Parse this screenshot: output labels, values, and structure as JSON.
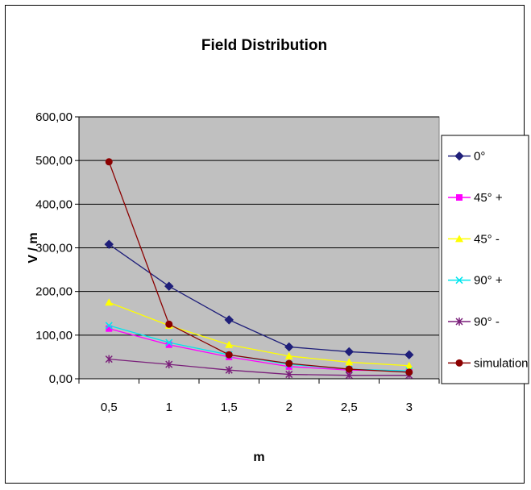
{
  "chart_data": {
    "type": "line",
    "title": "Field Distribution",
    "xlabel": "m",
    "ylabel": "V / m",
    "categories": [
      "0,5",
      "1",
      "1,5",
      "2",
      "2,5",
      "3"
    ],
    "y_ticks": [
      "0,00",
      "100,00",
      "200,00",
      "300,00",
      "400,00",
      "500,00",
      "600,00"
    ],
    "ylim": [
      0,
      600
    ],
    "grid": true,
    "legend_position": "right",
    "plot_background": "#c0c0c0",
    "series": [
      {
        "name": "0°",
        "values": [
          308,
          212,
          135,
          73,
          62,
          55
        ],
        "color": "#1f1f7a",
        "marker": "diamond"
      },
      {
        "name": "45° +",
        "values": [
          115,
          78,
          50,
          28,
          20,
          18
        ],
        "color": "#ff00ff",
        "marker": "square"
      },
      {
        "name": "45° -",
        "values": [
          175,
          122,
          78,
          52,
          38,
          30
        ],
        "color": "#ffff00",
        "marker": "triangle"
      },
      {
        "name": "90° +",
        "values": [
          122,
          83,
          55,
          33,
          22,
          18
        ],
        "color": "#00e5ee",
        "marker": "x"
      },
      {
        "name": "90° -",
        "values": [
          45,
          33,
          20,
          10,
          8,
          8
        ],
        "color": "#7a1f7a",
        "marker": "star"
      },
      {
        "name": "simulation",
        "values": [
          497,
          125,
          55,
          35,
          22,
          15
        ],
        "color": "#8b0000",
        "marker": "circle"
      }
    ]
  }
}
